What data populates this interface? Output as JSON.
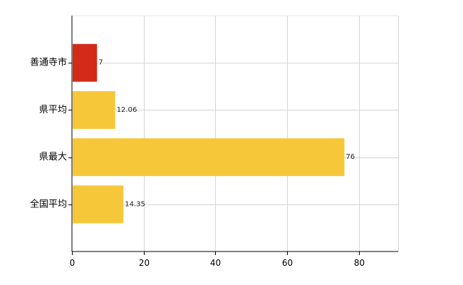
{
  "chart_data": {
    "type": "bar",
    "orientation": "horizontal",
    "categories": [
      "善通寺市",
      "県平均",
      "県最大",
      "全国平均"
    ],
    "values": [
      7,
      12.06,
      76,
      14.35
    ],
    "value_labels": [
      "7",
      "12.06",
      "76",
      "14.35"
    ],
    "colors": [
      "#d42a1a",
      "#f7c73a",
      "#f7c73a",
      "#f7c73a"
    ],
    "xlim": [
      0,
      91
    ],
    "x_ticks": [
      0,
      20,
      40,
      60,
      80
    ],
    "x_tick_labels": [
      "0",
      "20",
      "40",
      "60",
      "80"
    ],
    "grid": true
  }
}
